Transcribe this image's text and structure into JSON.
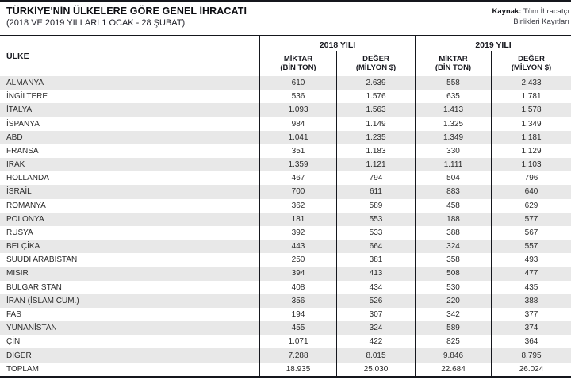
{
  "header": {
    "title": "TÜRKİYE'NİN ÜLKELERE GÖRE GENEL İHRACATI",
    "subtitle": "(2018 VE 2019 YILLARI 1 OCAK - 28 ŞUBAT)",
    "source": {
      "label": "Kaynak:",
      "line1": "Tüm İhracatçı",
      "line2": "Birlikleri Kayıtları"
    }
  },
  "table": {
    "country_header": "ÜLKE",
    "groups": [
      {
        "year": "2018 YILI",
        "cols": [
          {
            "l1": "MİKTAR",
            "l2": "(BİN TON)"
          },
          {
            "l1": "DEĞER",
            "l2": "(MİLYON $)"
          }
        ]
      },
      {
        "year": "2019 YILI",
        "cols": [
          {
            "l1": "MİKTAR",
            "l2": "(BİN TON)"
          },
          {
            "l1": "DEĞER",
            "l2": "(MİLYON $)"
          }
        ]
      }
    ],
    "rows": [
      {
        "country": "ALMANYA",
        "values": [
          "610",
          "2.639",
          "558",
          "2.433"
        ]
      },
      {
        "country": "İNGİLTERE",
        "values": [
          "536",
          "1.576",
          "635",
          "1.781"
        ]
      },
      {
        "country": "İTALYA",
        "values": [
          "1.093",
          "1.563",
          "1.413",
          "1.578"
        ]
      },
      {
        "country": "İSPANYA",
        "values": [
          "984",
          "1.149",
          "1.325",
          "1.349"
        ]
      },
      {
        "country": "ABD",
        "values": [
          "1.041",
          "1.235",
          "1.349",
          "1.181"
        ]
      },
      {
        "country": "FRANSA",
        "values": [
          "351",
          "1.183",
          "330",
          "1.129"
        ]
      },
      {
        "country": "IRAK",
        "values": [
          "1.359",
          "1.121",
          "1.111",
          "1.103"
        ]
      },
      {
        "country": "HOLLANDA",
        "values": [
          "467",
          "794",
          "504",
          "796"
        ]
      },
      {
        "country": "İSRAİL",
        "values": [
          "700",
          "611",
          "883",
          "640"
        ]
      },
      {
        "country": "ROMANYA",
        "values": [
          "362",
          "589",
          "458",
          "629"
        ]
      },
      {
        "country": "POLONYA",
        "values": [
          "181",
          "553",
          "188",
          "577"
        ]
      },
      {
        "country": "RUSYA",
        "values": [
          "392",
          "533",
          "388",
          "567"
        ]
      },
      {
        "country": "BELÇİKA",
        "values": [
          "443",
          "664",
          "324",
          "557"
        ]
      },
      {
        "country": "SUUDİ ARABİSTAN",
        "values": [
          "250",
          "381",
          "358",
          "493"
        ]
      },
      {
        "country": "MISIR",
        "values": [
          "394",
          "413",
          "508",
          "477"
        ]
      },
      {
        "country": "BULGARİSTAN",
        "values": [
          "408",
          "434",
          "530",
          "435"
        ]
      },
      {
        "country": "İRAN (İSLAM CUM.)",
        "values": [
          "356",
          "526",
          "220",
          "388"
        ]
      },
      {
        "country": "FAS",
        "values": [
          "194",
          "307",
          "342",
          "377"
        ]
      },
      {
        "country": "YUNANİSTAN",
        "values": [
          "455",
          "324",
          "589",
          "374"
        ]
      },
      {
        "country": "ÇİN",
        "values": [
          "1.071",
          "422",
          "825",
          "364"
        ]
      },
      {
        "country": "DİĞER",
        "values": [
          "7.288",
          "8.015",
          "9.846",
          "8.795"
        ]
      },
      {
        "country": "TOPLAM",
        "values": [
          "18.935",
          "25.030",
          "22.684",
          "26.024"
        ]
      }
    ]
  },
  "colors": {
    "rule": "#15171d",
    "stripe": "#e8e8e8",
    "text": "#2b2b2b"
  },
  "chart_data": {
    "type": "table",
    "title": "TÜRKİYE'NİN ÜLKELERE GÖRE GENEL İHRACATI",
    "subtitle": "(2018 VE 2019 YILLARI 1 OCAK - 28 ŞUBAT)",
    "source": "Kaynak: Tüm İhracatçı Birlikleri Kayıtları",
    "categories": [
      "ALMANYA",
      "İNGİLTERE",
      "İTALYA",
      "İSPANYA",
      "ABD",
      "FRANSA",
      "IRAK",
      "HOLLANDA",
      "İSRAİL",
      "ROMANYA",
      "POLONYA",
      "RUSYA",
      "BELÇİKA",
      "SUUDİ ARABİSTAN",
      "MISIR",
      "BULGARİSTAN",
      "İRAN (İSLAM CUM.)",
      "FAS",
      "YUNANİSTAN",
      "ÇİN",
      "DİĞER",
      "TOPLAM"
    ],
    "series": [
      {
        "name": "2018 MİKTAR (BİN TON)",
        "values": [
          610,
          536,
          1093,
          984,
          1041,
          351,
          1359,
          467,
          700,
          362,
          181,
          392,
          443,
          250,
          394,
          408,
          356,
          194,
          455,
          1071,
          7288,
          18935
        ]
      },
      {
        "name": "2018 DEĞER (MİLYON $)",
        "values": [
          2639,
          1576,
          1563,
          1149,
          1235,
          1183,
          1121,
          794,
          611,
          589,
          553,
          533,
          664,
          381,
          413,
          434,
          526,
          307,
          324,
          422,
          8015,
          25030
        ]
      },
      {
        "name": "2019 MİKTAR (BİN TON)",
        "values": [
          558,
          635,
          1413,
          1325,
          1349,
          330,
          1111,
          504,
          883,
          458,
          188,
          388,
          324,
          358,
          508,
          530,
          220,
          342,
          589,
          825,
          9846,
          22684
        ]
      },
      {
        "name": "2019 DEĞER (MİLYON $)",
        "values": [
          2433,
          1781,
          1578,
          1349,
          1181,
          1129,
          1103,
          796,
          640,
          629,
          577,
          567,
          557,
          493,
          477,
          435,
          388,
          377,
          374,
          364,
          8795,
          26024
        ]
      }
    ]
  }
}
